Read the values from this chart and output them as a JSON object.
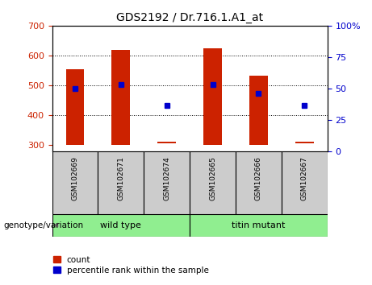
{
  "title": "GDS2192 / Dr.716.1.A1_at",
  "samples": [
    "GSM102669",
    "GSM102671",
    "GSM102674",
    "GSM102665",
    "GSM102666",
    "GSM102667"
  ],
  "bar_bottoms": [
    300,
    300,
    305,
    300,
    300,
    305
  ],
  "bar_tops": [
    555,
    618,
    312,
    625,
    533,
    312
  ],
  "percentile_values": [
    488,
    502,
    432,
    502,
    474,
    432
  ],
  "ylim_left": [
    280,
    700
  ],
  "ylim_right": [
    0,
    100
  ],
  "yticks_left": [
    300,
    400,
    500,
    600,
    700
  ],
  "yticks_right": [
    0,
    25,
    50,
    75,
    100
  ],
  "bar_color": "#cc2200",
  "dot_color": "#0000cc",
  "wild_type_label": "wild type",
  "titin_mutant_label": "titin mutant",
  "genotype_label": "genotype/variation",
  "legend_count": "count",
  "legend_percentile": "percentile rank within the sample",
  "bg_color_samples": "#cccccc",
  "bg_color_green": "#90ee90",
  "right_axis_label_color": "#0000cc",
  "left_axis_label_color": "#cc2200",
  "bar_width": 0.4,
  "gridlines_at": [
    400,
    500,
    600
  ],
  "n_wild": 3,
  "n_titin": 3
}
